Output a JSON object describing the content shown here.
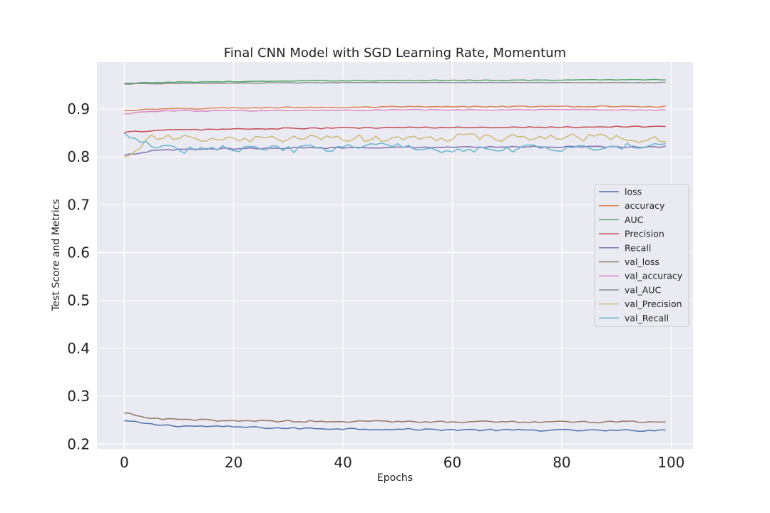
{
  "chart_data": {
    "type": "line",
    "title": "Final CNN Model with SGD Learning Rate, Momentum",
    "xlabel": "Epochs",
    "ylabel": "Test Score and Metrics",
    "xlim": [
      -5,
      104
    ],
    "ylim": [
      0.19,
      0.998
    ],
    "xticks": [
      0,
      20,
      40,
      60,
      80,
      100
    ],
    "xtick_labels": [
      "0",
      "20",
      "40",
      "60",
      "80",
      "100"
    ],
    "yticks": [
      0.2,
      0.3,
      0.4,
      0.5,
      0.6,
      0.7,
      0.8,
      0.9
    ],
    "ytick_labels": [
      "0.2",
      "0.3",
      "0.4",
      "0.5",
      "0.6",
      "0.7",
      "0.8",
      "0.9"
    ],
    "grid": true,
    "legend_position": "center-right",
    "epochs": 100,
    "series": [
      {
        "name": "loss",
        "color": "#4c72b0",
        "x": [
          0,
          5,
          10,
          20,
          30,
          40,
          50,
          60,
          70,
          80,
          90,
          99
        ],
        "y": [
          0.249,
          0.241,
          0.238,
          0.236,
          0.233,
          0.232,
          0.231,
          0.23,
          0.229,
          0.229,
          0.228,
          0.229
        ],
        "noise": 0.002
      },
      {
        "name": "accuracy",
        "color": "#dd8452",
        "x": [
          0,
          5,
          10,
          20,
          30,
          40,
          50,
          60,
          70,
          80,
          90,
          99
        ],
        "y": [
          0.896,
          0.899,
          0.9,
          0.902,
          0.903,
          0.903,
          0.904,
          0.904,
          0.905,
          0.905,
          0.905,
          0.905
        ],
        "noise": 0.0015
      },
      {
        "name": "AUC",
        "color": "#55a868",
        "x": [
          0,
          5,
          10,
          20,
          30,
          40,
          50,
          60,
          70,
          80,
          90,
          99
        ],
        "y": [
          0.953,
          0.955,
          0.956,
          0.957,
          0.958,
          0.959,
          0.959,
          0.96,
          0.96,
          0.96,
          0.961,
          0.961
        ],
        "noise": 0.0008
      },
      {
        "name": "Precision",
        "color": "#c44e52",
        "x": [
          0,
          5,
          10,
          20,
          30,
          40,
          50,
          60,
          70,
          80,
          90,
          99
        ],
        "y": [
          0.851,
          0.855,
          0.856,
          0.858,
          0.859,
          0.86,
          0.861,
          0.861,
          0.862,
          0.862,
          0.863,
          0.863
        ],
        "noise": 0.0015
      },
      {
        "name": "Recall",
        "color": "#8172b3",
        "x": [
          0,
          5,
          10,
          20,
          30,
          40,
          50,
          60,
          70,
          80,
          90,
          99
        ],
        "y": [
          0.803,
          0.812,
          0.815,
          0.817,
          0.818,
          0.819,
          0.82,
          0.82,
          0.821,
          0.821,
          0.821,
          0.821
        ],
        "noise": 0.0015
      },
      {
        "name": "val_loss",
        "color": "#937860",
        "x": [
          0,
          5,
          10,
          20,
          30,
          40,
          50,
          60,
          70,
          80,
          90,
          99
        ],
        "y": [
          0.265,
          0.253,
          0.251,
          0.249,
          0.248,
          0.247,
          0.247,
          0.247,
          0.247,
          0.246,
          0.246,
          0.247
        ],
        "noise": 0.002
      },
      {
        "name": "val_accuracy",
        "color": "#da8bc3",
        "x": [
          0,
          5,
          10,
          20,
          30,
          40,
          50,
          60,
          70,
          80,
          90,
          99
        ],
        "y": [
          0.89,
          0.895,
          0.896,
          0.896,
          0.897,
          0.897,
          0.898,
          0.898,
          0.898,
          0.898,
          0.898,
          0.898
        ],
        "noise": 0.0012
      },
      {
        "name": "val_AUC",
        "color": "#8c8c8c",
        "x": [
          0,
          5,
          10,
          20,
          30,
          40,
          50,
          60,
          70,
          80,
          90,
          99
        ],
        "y": [
          0.952,
          0.953,
          0.953,
          0.954,
          0.954,
          0.955,
          0.955,
          0.955,
          0.955,
          0.955,
          0.955,
          0.955
        ],
        "noise": 0.0006
      },
      {
        "name": "val_Precision",
        "color": "#ccb974",
        "x": [
          0,
          5,
          10,
          20,
          30,
          40,
          50,
          60,
          70,
          80,
          90,
          99
        ],
        "y": [
          0.8,
          0.84,
          0.838,
          0.835,
          0.838,
          0.838,
          0.838,
          0.84,
          0.84,
          0.84,
          0.84,
          0.835
        ],
        "noise": 0.008
      },
      {
        "name": "val_Recall",
        "color": "#64b5cd",
        "x": [
          0,
          5,
          10,
          20,
          30,
          40,
          50,
          60,
          70,
          80,
          90,
          99
        ],
        "y": [
          0.85,
          0.82,
          0.815,
          0.818,
          0.815,
          0.82,
          0.823,
          0.815,
          0.818,
          0.818,
          0.82,
          0.825
        ],
        "noise": 0.008
      }
    ]
  }
}
